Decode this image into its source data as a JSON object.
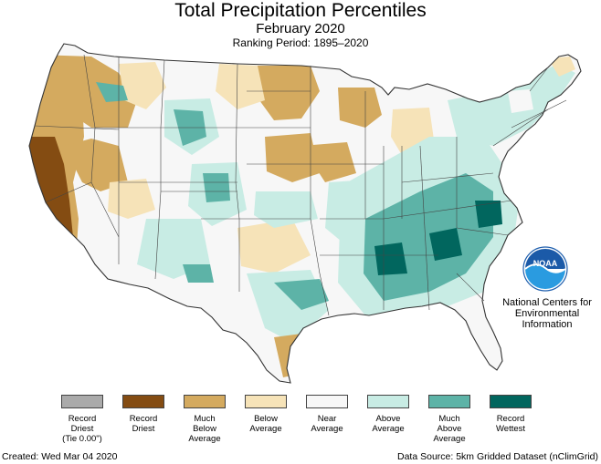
{
  "header": {
    "title": "Total Precipitation Percentiles",
    "subtitle": "February 2020",
    "ranking_period": "Ranking Period: 1895–2020"
  },
  "logo": {
    "text": "NOAA",
    "icon": "noaa-logo-icon",
    "org_name": "National Centers for Environmental Information"
  },
  "legend": {
    "items": [
      {
        "label": "Record\nDriest\n(Tie 0.00\")",
        "color": "#aaaaaa"
      },
      {
        "label": "Record\nDriest",
        "color": "#844c12"
      },
      {
        "label": "Much\nBelow\nAverage",
        "color": "#d4aa5f"
      },
      {
        "label": "Below\nAverage",
        "color": "#f6e3b8"
      },
      {
        "label": "Near\nAverage",
        "color": "#f7f7f7"
      },
      {
        "label": "Above\nAverage",
        "color": "#c8ece4"
      },
      {
        "label": "Much\nAbove\nAverage",
        "color": "#5db3a7"
      },
      {
        "label": "Record\nWettest",
        "color": "#01665e"
      }
    ]
  },
  "footer": {
    "created": "Created: Wed Mar 04 2020",
    "source": "Data Source: 5km Gridded Dataset (nClimGrid)"
  },
  "colors": {
    "record_driest": "#844c12",
    "much_below": "#d4aa5f",
    "below": "#f6e3b8",
    "near": "#f7f7f7",
    "above": "#c8ece4",
    "much_above": "#5db3a7",
    "record_wettest": "#01665e",
    "border": "#333333"
  }
}
